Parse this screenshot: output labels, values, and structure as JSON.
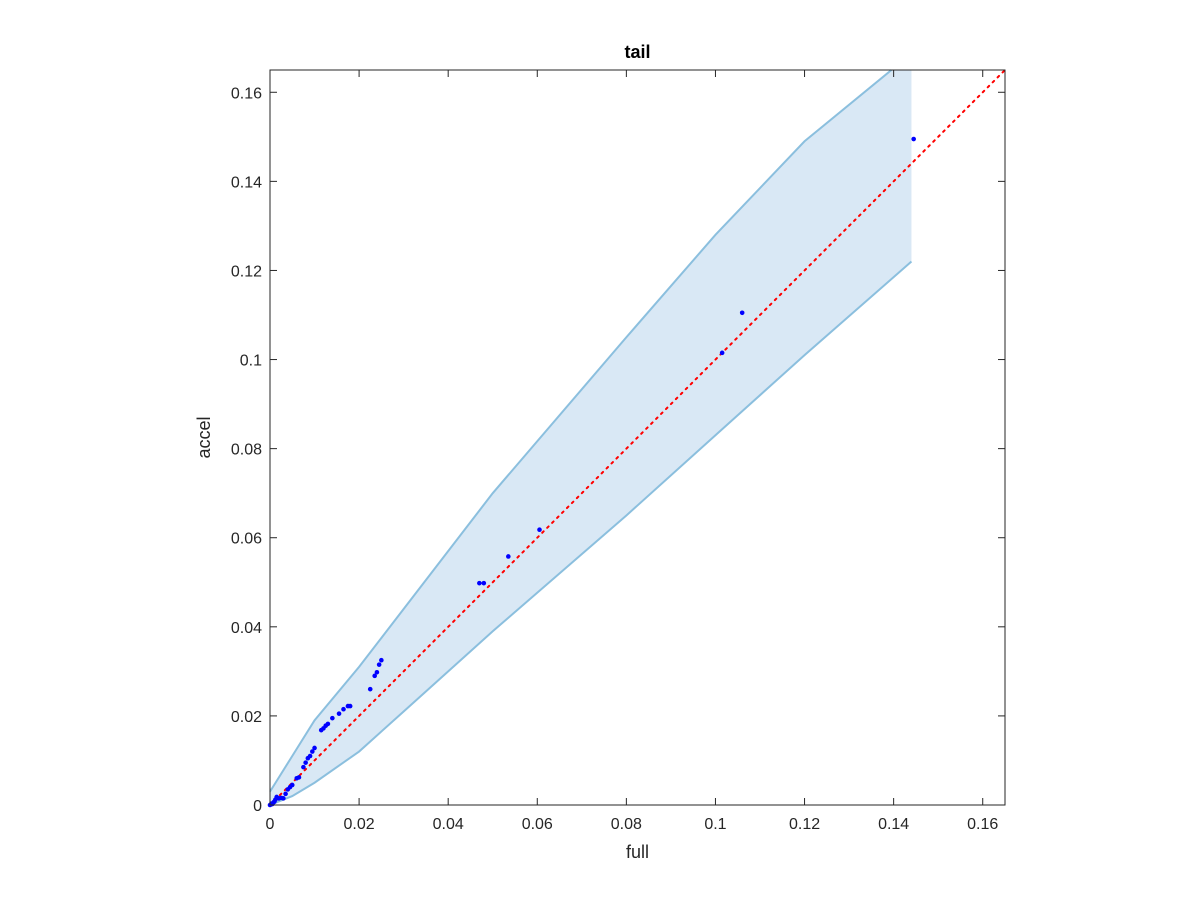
{
  "chart_data": {
    "type": "scatter",
    "title": "tail",
    "xlabel": "full",
    "ylabel": "accel",
    "xlim": [
      0,
      0.165
    ],
    "ylim": [
      0,
      0.165
    ],
    "xticks": [
      "0",
      "0.02",
      "0.04",
      "0.06",
      "0.08",
      "0.1",
      "0.12",
      "0.14",
      "0.16"
    ],
    "yticks": [
      "0",
      "0.02",
      "0.04",
      "0.06",
      "0.08",
      "0.1",
      "0.12",
      "0.14",
      "0.16"
    ],
    "tick_values": [
      0,
      0.02,
      0.04,
      0.06,
      0.08,
      0.1,
      0.12,
      0.14,
      0.16
    ],
    "grid": false,
    "reference_line": {
      "from": [
        0,
        0
      ],
      "to": [
        0.165,
        0.165
      ],
      "color": "#ff0000",
      "style": "dotted"
    },
    "band": {
      "color_fill": "#d9e8f5",
      "color_edge": "#8bbfde",
      "x_end": 0.144,
      "upper": [
        [
          0,
          0.003
        ],
        [
          0.005,
          0.011
        ],
        [
          0.01,
          0.019
        ],
        [
          0.02,
          0.031
        ],
        [
          0.03,
          0.044
        ],
        [
          0.05,
          0.07
        ],
        [
          0.08,
          0.105
        ],
        [
          0.1,
          0.128
        ],
        [
          0.12,
          0.149
        ],
        [
          0.1395,
          0.165
        ]
      ],
      "lower": [
        [
          0,
          0
        ],
        [
          0.005,
          0.002
        ],
        [
          0.01,
          0.005
        ],
        [
          0.02,
          0.012
        ],
        [
          0.03,
          0.021
        ],
        [
          0.05,
          0.039
        ],
        [
          0.08,
          0.065
        ],
        [
          0.1,
          0.083
        ],
        [
          0.12,
          0.101
        ],
        [
          0.144,
          0.122
        ]
      ]
    },
    "series": [
      {
        "color": "#0000ff",
        "points": [
          [
            0,
            0
          ],
          [
            0.0003,
            0.0003
          ],
          [
            0.0005,
            0.0002
          ],
          [
            0.0008,
            0.0006
          ],
          [
            0.001,
            0.0008
          ],
          [
            0.0012,
            0.0012
          ],
          [
            0.0015,
            0.0018
          ],
          [
            0.002,
            0.0015
          ],
          [
            0.0025,
            0.0016
          ],
          [
            0.003,
            0.0015
          ],
          [
            0.0035,
            0.0025
          ],
          [
            0.004,
            0.0035
          ],
          [
            0.0045,
            0.004
          ],
          [
            0.005,
            0.0045
          ],
          [
            0.006,
            0.006
          ],
          [
            0.0065,
            0.0062
          ],
          [
            0.0075,
            0.0085
          ],
          [
            0.008,
            0.0095
          ],
          [
            0.0085,
            0.0105
          ],
          [
            0.009,
            0.011
          ],
          [
            0.0095,
            0.012
          ],
          [
            0.01,
            0.0128
          ],
          [
            0.0115,
            0.0168
          ],
          [
            0.012,
            0.0172
          ],
          [
            0.0125,
            0.0178
          ],
          [
            0.013,
            0.0182
          ],
          [
            0.014,
            0.0195
          ],
          [
            0.0155,
            0.0205
          ],
          [
            0.0165,
            0.0215
          ],
          [
            0.0175,
            0.0222
          ],
          [
            0.018,
            0.0222
          ],
          [
            0.0225,
            0.026
          ],
          [
            0.0235,
            0.029
          ],
          [
            0.024,
            0.0298
          ],
          [
            0.0245,
            0.0315
          ],
          [
            0.025,
            0.0325
          ],
          [
            0.047,
            0.0498
          ],
          [
            0.048,
            0.0498
          ],
          [
            0.0535,
            0.0558
          ],
          [
            0.0605,
            0.0618
          ],
          [
            0.1015,
            0.1015
          ],
          [
            0.106,
            0.1105
          ],
          [
            0.1445,
            0.1495
          ]
        ]
      }
    ]
  }
}
